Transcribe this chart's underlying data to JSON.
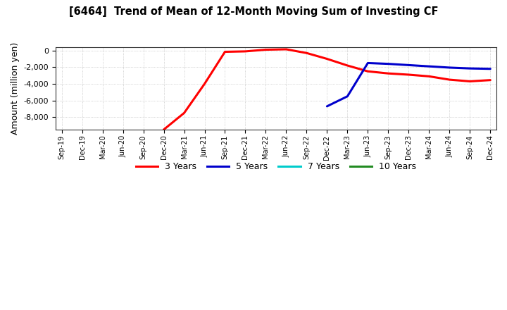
{
  "title": "[6464]  Trend of Mean of 12-Month Moving Sum of Investing CF",
  "ylabel": "Amount (million yen)",
  "ylim": [
    -9500,
    400
  ],
  "yticks": [
    0,
    -2000,
    -4000,
    -6000,
    -8000
  ],
  "background_color": "#ffffff",
  "grid_color": "#aaaaaa",
  "series": {
    "3years": {
      "color": "#ff0000",
      "label": "3 Years",
      "x_indices": [
        5,
        6,
        7,
        8,
        9,
        10,
        11,
        12,
        13,
        14,
        15,
        16,
        17,
        18,
        19,
        20,
        21
      ],
      "y": [
        -9500,
        -7500,
        -4000,
        -150,
        -100,
        100,
        150,
        -300,
        -1000,
        -1800,
        -2500,
        -2750,
        -2900,
        -3100,
        -3500,
        -3700,
        -3550
      ]
    },
    "5years": {
      "color": "#0000cc",
      "label": "5 Years",
      "x_indices": [
        13,
        14,
        15,
        16,
        17,
        18,
        19,
        20,
        21
      ],
      "y": [
        -6700,
        -5500,
        -1500,
        -1600,
        -1750,
        -1900,
        -2050,
        -2150,
        -2200
      ]
    },
    "7years": {
      "color": "#00cccc",
      "label": "7 Years",
      "x_indices": [],
      "y": []
    },
    "10years": {
      "color": "#228b22",
      "label": "10 Years",
      "x_indices": [],
      "y": []
    }
  },
  "x_labels": [
    "Sep-19",
    "Dec-19",
    "Mar-20",
    "Jun-20",
    "Sep-20",
    "Dec-20",
    "Mar-21",
    "Jun-21",
    "Sep-21",
    "Dec-21",
    "Mar-22",
    "Jun-22",
    "Sep-22",
    "Dec-22",
    "Mar-23",
    "Jun-23",
    "Sep-23",
    "Dec-23",
    "Mar-24",
    "Jun-24",
    "Sep-24",
    "Dec-24"
  ]
}
